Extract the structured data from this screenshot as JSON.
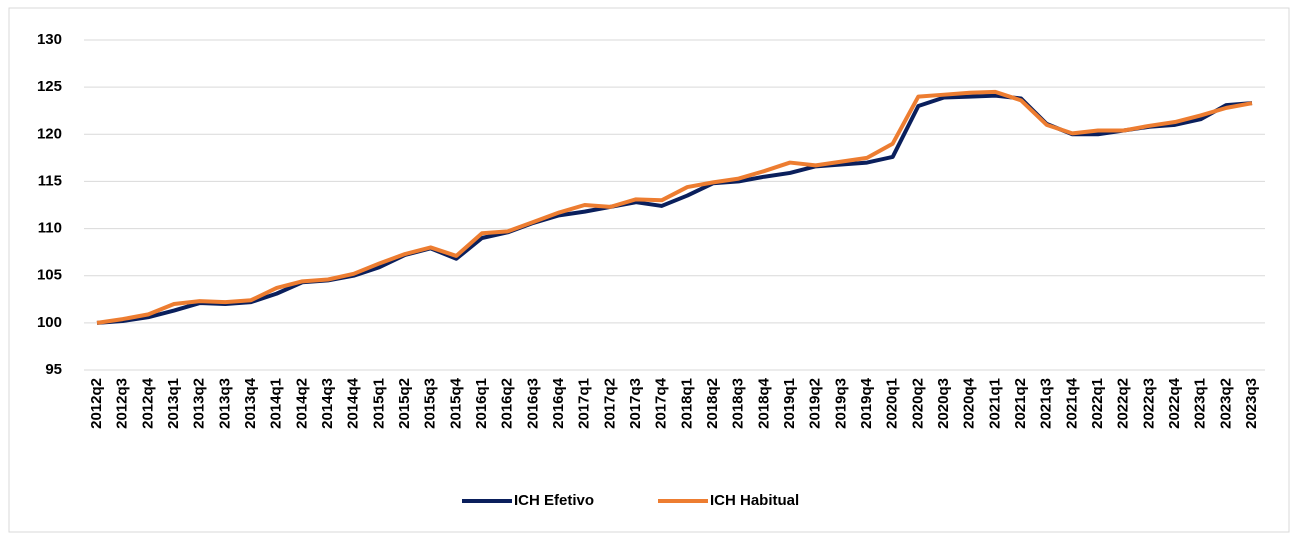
{
  "chart_data": {
    "type": "line",
    "categories": [
      "2012q2",
      "2012q3",
      "2012q4",
      "2013q1",
      "2013q2",
      "2013q3",
      "2013q4",
      "2014q1",
      "2014q2",
      "2014q3",
      "2014q4",
      "2015q1",
      "2015q2",
      "2015q3",
      "2015q4",
      "2016q1",
      "2016q2",
      "2016q3",
      "2016q4",
      "2017q1",
      "2017q2",
      "2017q3",
      "2017q4",
      "2018q1",
      "2018q2",
      "2018q3",
      "2018q4",
      "2019q1",
      "2019q2",
      "2019q3",
      "2019q4",
      "2020q1",
      "2020q2",
      "2020q3",
      "2020q4",
      "2021q1",
      "2021q2",
      "2021q3",
      "2021q4",
      "2022q1",
      "2022q2",
      "2022q3",
      "2022q4",
      "2023q1",
      "2023q2",
      "2023q3"
    ],
    "series": [
      {
        "name": "ICH Efetivo",
        "color": "#0a1f5c",
        "values": [
          100.0,
          100.2,
          100.6,
          101.3,
          102.1,
          102.0,
          102.2,
          103.1,
          104.3,
          104.5,
          105.0,
          105.9,
          107.2,
          107.9,
          106.8,
          109.0,
          109.6,
          110.6,
          111.4,
          111.8,
          112.3,
          112.8,
          112.4,
          113.5,
          114.8,
          115.0,
          115.5,
          115.9,
          116.6,
          116.8,
          117.0,
          117.6,
          123.0,
          123.9,
          124.0,
          124.1,
          123.8,
          121.1,
          120.0,
          120.0,
          120.4,
          120.8,
          121.0,
          121.6,
          123.1,
          123.3
        ]
      },
      {
        "name": "ICH Habitual",
        "color": "#ed7d31",
        "values": [
          100.0,
          100.4,
          100.9,
          102.0,
          102.3,
          102.2,
          102.4,
          103.7,
          104.4,
          104.6,
          105.2,
          106.3,
          107.3,
          108.0,
          107.1,
          109.5,
          109.7,
          110.7,
          111.7,
          112.5,
          112.3,
          113.1,
          113.0,
          114.4,
          114.9,
          115.3,
          116.1,
          117.0,
          116.7,
          117.1,
          117.5,
          119.0,
          124.0,
          124.2,
          124.4,
          124.5,
          123.6,
          121.0,
          120.1,
          120.4,
          120.4,
          120.9,
          121.3,
          122.0,
          122.8,
          123.3
        ]
      }
    ],
    "ylim": [
      95,
      130
    ],
    "yticks": [
      95,
      100,
      105,
      110,
      115,
      120,
      125,
      130
    ],
    "grid": true
  }
}
